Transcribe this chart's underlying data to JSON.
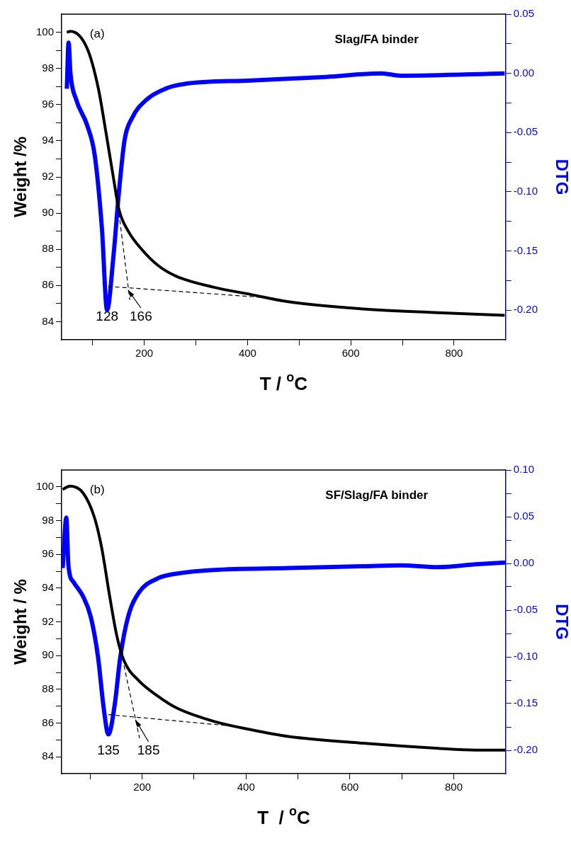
{
  "chart_data": [
    {
      "type": "line",
      "title": "Slag/FA binder",
      "xlabel": "T / $^{o}$C",
      "ylabel": "Weight /%",
      "y2label": "DTG",
      "annotations": [
        "(a)",
        "128",
        {
          "text": "166",
          "x": 166,
          "y": 85.85
        }
      ],
      "xlim": [
        40,
        900
      ],
      "xticks": [
        {
          "value": 100,
          "label": null
        },
        200,
        {
          "value": 300,
          "label": null
        },
        400,
        {
          "value": 500,
          "label": null
        },
        600,
        {
          "value": 700,
          "label": null
        },
        800
      ],
      "ylim": [
        83,
        101
      ],
      "yticks": [
        84,
        {
          "value": 85,
          "label": null
        },
        86,
        {
          "value": 87,
          "label": null
        },
        88,
        {
          "value": 89,
          "label": null
        },
        90,
        {
          "value": 91,
          "label": null
        },
        92,
        {
          "value": 93,
          "label": null
        },
        94,
        {
          "value": 95,
          "label": null
        },
        96,
        {
          "value": 97,
          "label": null
        },
        98,
        {
          "value": 99,
          "label": null
        },
        100
      ],
      "y2lim": [
        -0.225,
        0.05
      ],
      "y2ticks": [
        {
          "value": -0.2,
          "label": "-0.20"
        },
        {
          "value": -0.175,
          "label": null
        },
        -0.15,
        {
          "value": -0.125,
          "label": null
        },
        {
          "value": -0.1,
          "label": "-0.10"
        },
        {
          "value": -0.075,
          "label": null
        },
        -0.05,
        {
          "value": -0.025,
          "label": null
        },
        {
          "value": 0,
          "label": "0.00"
        },
        {
          "value": 0.025,
          "label": null
        },
        0.05
      ],
      "series": [
        {
          "color": "#000000",
          "x": [
            50,
            57,
            89.5,
            111,
            125.6,
            140,
            151,
            169,
            198,
            227,
            263,
            335,
            407,
            479,
            624,
            768,
            898
          ],
          "values": [
            100,
            100.05,
            99.1,
            96.9,
            94.5,
            92,
            90.2,
            89,
            87.9,
            87.1,
            86.5,
            85.9,
            85.5,
            85.1,
            84.7,
            84.5,
            84.35
          ]
        },
        {
          "color": "#0000ff",
          "axis": "y2",
          "x": [
            50,
            53.5,
            57,
            68,
            89.5,
            104,
            118,
            128,
            140,
            151,
            162,
            176,
            205,
            241,
            277,
            407,
            552,
            660,
            696,
            898
          ],
          "values": [
            -0.013,
            0.026,
            0,
            -0.022,
            -0.044,
            -0.069,
            -0.131,
            -0.2,
            -0.156,
            -0.1,
            -0.056,
            -0.038,
            -0.022,
            -0.013,
            -0.009,
            -0.006,
            -0.003,
            0,
            -0.002,
            0
          ]
        },
        {
          "type": "line",
          "color": "#000000",
          "line_style": "dashed",
          "x": [
            151,
            172
          ],
          "values": [
            90,
            85.2
          ]
        },
        {
          "type": "line",
          "color": "#000000",
          "line_style": "dashed",
          "x": [
            130,
            450
          ],
          "values": [
            85.95,
            85.3
          ]
        }
      ]
    },
    {
      "type": "line",
      "title": "SF/Slag/FA binder",
      "xlabel": "T  / $^{o}$C",
      "ylabel": "Weight / %",
      "y2label": "DTG",
      "annotations": [
        "(b)",
        "135",
        {
          "text": "185",
          "x": 185,
          "y": 86.3
        }
      ],
      "xlim": [
        45,
        900
      ],
      "xticks": [
        {
          "value": 100,
          "label": null
        },
        200,
        {
          "value": 300,
          "label": null
        },
        400,
        {
          "value": 500,
          "label": null
        },
        600,
        {
          "value": 700,
          "label": null
        },
        800
      ],
      "ylim": [
        83,
        101
      ],
      "yticks": [
        84,
        {
          "value": 85,
          "label": null
        },
        86,
        {
          "value": 87,
          "label": null
        },
        88,
        {
          "value": 89,
          "label": null
        },
        90,
        {
          "value": 91,
          "label": null
        },
        92,
        {
          "value": 93,
          "label": null
        },
        94,
        {
          "value": 95,
          "label": null
        },
        96,
        {
          "value": 97,
          "label": null
        },
        98,
        {
          "value": 99,
          "label": null
        },
        100
      ],
      "y2lim": [
        -0.225,
        0.1
      ],
      "y2ticks": [
        {
          "value": -0.2,
          "label": "-0.20"
        },
        {
          "value": -0.175,
          "label": null
        },
        -0.15,
        {
          "value": -0.125,
          "label": null
        },
        {
          "value": -0.1,
          "label": "-0.10"
        },
        {
          "value": -0.075,
          "label": null
        },
        -0.05,
        {
          "value": -0.025,
          "label": null
        },
        {
          "value": 0,
          "label": "0.00"
        },
        {
          "value": 0.025,
          "label": null
        },
        0.05,
        {
          "value": 0.075,
          "label": null
        },
        {
          "value": 0.1,
          "label": "0.10"
        }
      ],
      "series": [
        {
          "color": "#000000",
          "x": [
            47,
            61,
            86,
            108,
            122,
            137,
            151,
            165,
            194,
            230,
            266,
            338,
            410,
            482,
            626,
            770,
            842,
            899
          ],
          "values": [
            99.85,
            100.05,
            99.65,
            98.2,
            96.4,
            93.6,
            91.2,
            89.7,
            88.5,
            87.6,
            86.9,
            86.1,
            85.6,
            85.2,
            84.8,
            84.5,
            84.4,
            84.4
          ]
        },
        {
          "color": "#0000ff",
          "axis": "y2",
          "x": [
            47,
            54,
            58,
            68,
            86,
            101,
            115,
            126,
            135,
            147,
            158,
            173,
            194,
            230,
            266,
            338,
            482,
            626,
            698,
            770,
            842,
            899
          ],
          "values": [
            -0.005,
            0.049,
            -0.002,
            -0.02,
            -0.035,
            -0.057,
            -0.1,
            -0.155,
            -0.183,
            -0.152,
            -0.1,
            -0.057,
            -0.031,
            -0.016,
            -0.011,
            -0.007,
            -0.005,
            -0.003,
            -0.002,
            -0.004,
            -0.001,
            0.001
          ]
        },
        {
          "type": "line",
          "color": "#000000",
          "line_style": "dashed",
          "x": [
            165,
            195
          ],
          "values": [
            89.4,
            85.1
          ]
        },
        {
          "type": "line",
          "color": "#000000",
          "line_style": "dashed",
          "x": [
            135,
            380
          ],
          "values": [
            86.5,
            85.8
          ]
        }
      ]
    }
  ]
}
